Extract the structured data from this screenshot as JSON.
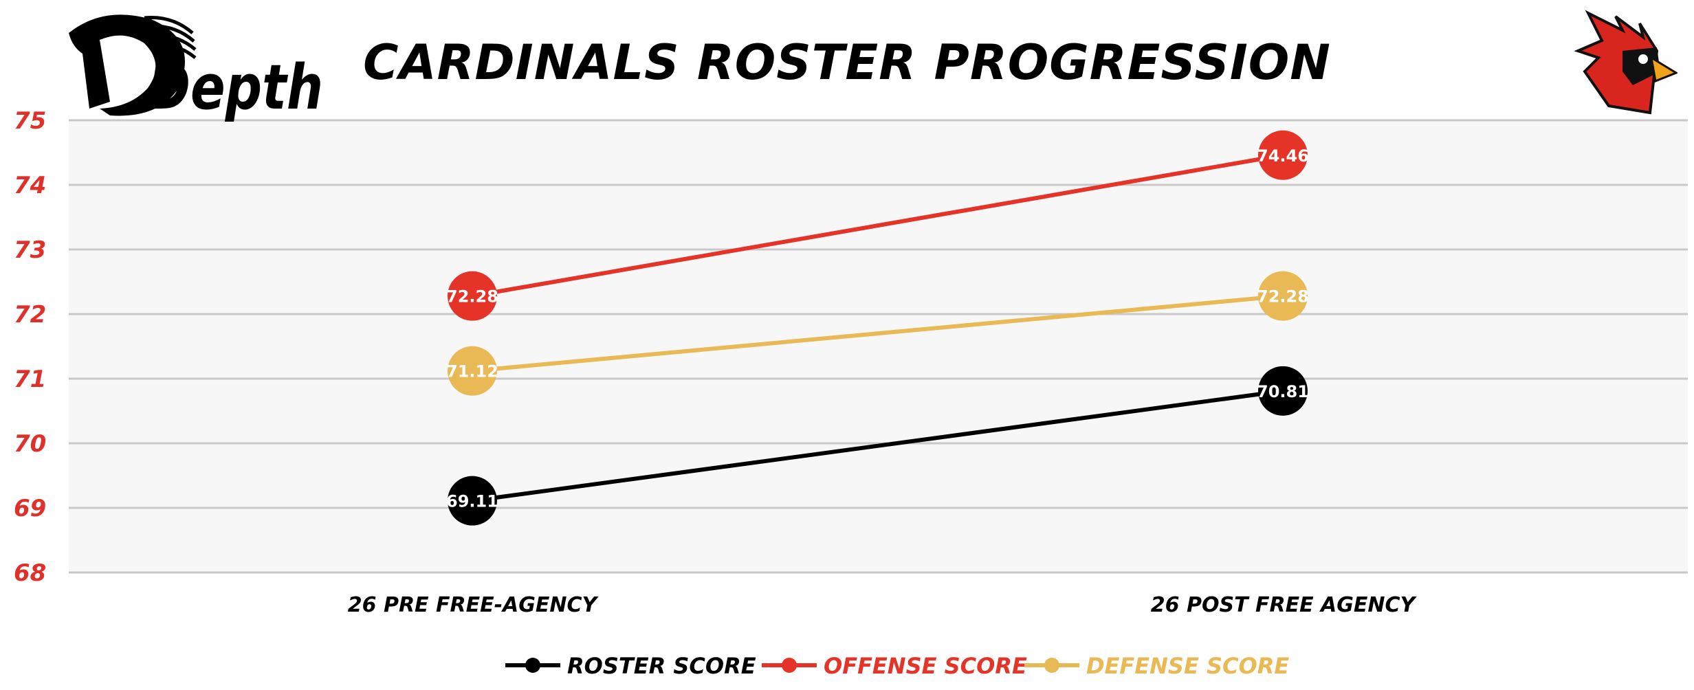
{
  "logo": {
    "text": "Depth"
  },
  "mascot": {
    "icon": "cardinal-mascot-icon"
  },
  "chart_data": {
    "type": "line",
    "title": "CARDINALS ROSTER PROGRESSION",
    "categories": [
      "26 PRE FREE-AGENCY",
      "26 POST FREE AGENCY"
    ],
    "ylim": [
      68,
      75
    ],
    "yticks": [
      68,
      69,
      70,
      71,
      72,
      73,
      74,
      75
    ],
    "grid": true,
    "legend_position": "bottom",
    "series": [
      {
        "name": "ROSTER SCORE",
        "color": "#000000",
        "values": [
          69.11,
          70.81
        ]
      },
      {
        "name": "OFFENSE SCORE",
        "color": "#e53427",
        "values": [
          72.28,
          74.46
        ]
      },
      {
        "name": "DEFENSE SCORE",
        "color": "#e9b955",
        "values": [
          71.12,
          72.28
        ]
      }
    ]
  }
}
